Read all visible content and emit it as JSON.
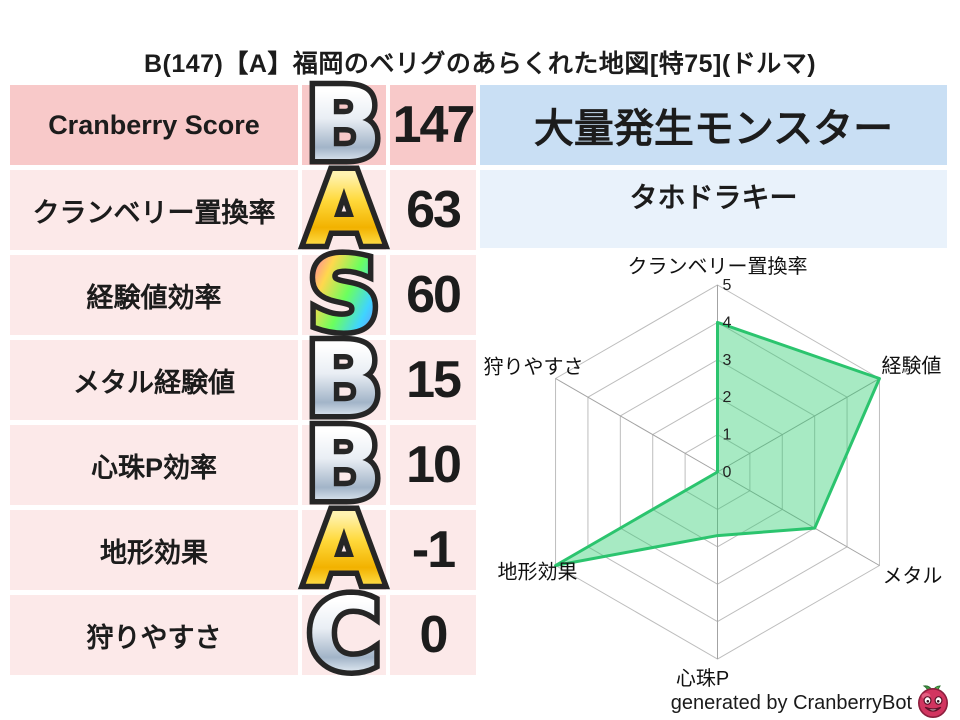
{
  "title": "B(147)【A】福岡のベリグのあらくれた地図[特75](ドルマ)",
  "stats_table": {
    "rows": [
      {
        "label": "Cranberry Score",
        "grade": "B",
        "style": "silver",
        "value": "147"
      },
      {
        "label": "クランベリー置換率",
        "grade": "A",
        "style": "gold",
        "value": "63"
      },
      {
        "label": "経験値効率",
        "grade": "S",
        "style": "rainbow",
        "value": "60"
      },
      {
        "label": "メタル経験値",
        "grade": "B",
        "style": "silver",
        "value": "15"
      },
      {
        "label": "心珠P効率",
        "grade": "B",
        "style": "silver",
        "value": "10"
      },
      {
        "label": "地形効果",
        "grade": "A",
        "style": "gold",
        "value": "-1"
      },
      {
        "label": "狩りやすさ",
        "grade": "C",
        "style": "silver",
        "value": "0"
      }
    ]
  },
  "outbreak_panel": {
    "header": "大量発生モンスター",
    "monster": "タホドラキー"
  },
  "chart_data": {
    "type": "radar",
    "axes": [
      "クランベリー置換率",
      "経験値",
      "メタル",
      "心珠P",
      "地形効果",
      "狩りやすさ"
    ],
    "values": [
      4,
      5,
      3,
      1.7,
      5,
      0
    ],
    "axis_min": 0,
    "axis_max": 5,
    "tick_labels": [
      "0",
      "1",
      "2",
      "3",
      "4",
      "5"
    ],
    "grid_shape": "hexagon",
    "grid_color": "#bdbdbd",
    "axis_color": "#a3a3a3",
    "line_color": "#2bc46e",
    "fill_color": "rgba(46,204,113,0.42)",
    "legend": "none"
  },
  "footer": {
    "credit": "generated by CranberryBot",
    "icon": "cranberry-bot-icon",
    "icon_colors": {
      "berry": "#d23560",
      "leaf": "#3f9d44",
      "face": "#ffffff"
    }
  },
  "colors": {
    "row_header_pink": "#f8c9c9",
    "row_pink": "#fce9e9",
    "outbreak_header_blue": "#c9dff4",
    "outbreak_cell_blue": "#e9f2fb"
  }
}
